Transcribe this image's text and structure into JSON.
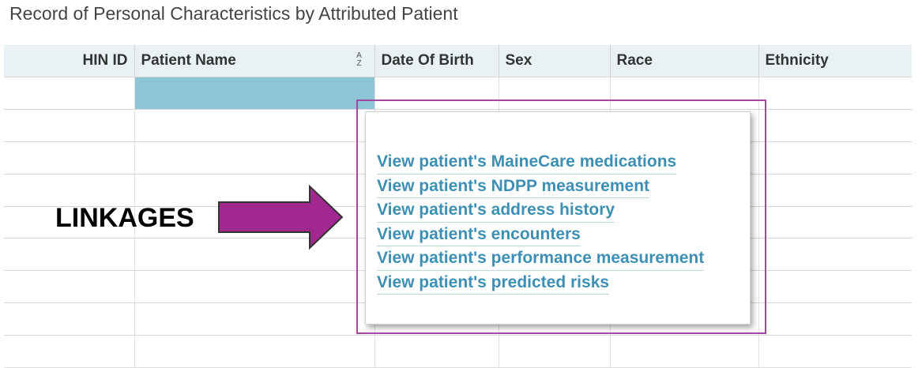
{
  "title": "Record of Personal Characteristics by Attributed Patient",
  "table": {
    "columns": [
      "HIN ID",
      "Patient Name",
      "Date Of Birth",
      "Sex",
      "Race",
      "Ethnicity"
    ],
    "sort_indicator": [
      "A",
      "Z"
    ]
  },
  "tooltip": {
    "links": [
      "View patient's MaineCare medications",
      "View patient's NDPP measurement",
      "View patient's address history",
      "View patient's encounters",
      "View patient's performance measurement",
      "View patient's predicted risks"
    ]
  },
  "annotation": {
    "label": "LINKAGES"
  },
  "colors": {
    "header_bg": "#e9f1f4",
    "selected_cell": "#8ec5d6",
    "link": "#3d8fb3",
    "highlight_border": "#a347a0",
    "arrow_fill": "#a0288f"
  }
}
